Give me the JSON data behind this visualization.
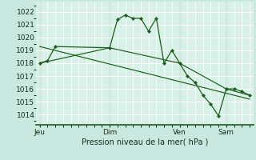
{
  "bg_color": "#c8e8e0",
  "plot_bg": "#d8f0e8",
  "grid_color": "#b8d8d0",
  "line_color": "#1a5e1a",
  "ylim": [
    1013.2,
    1022.8
  ],
  "yticks": [
    1014,
    1015,
    1016,
    1017,
    1018,
    1019,
    1020,
    1021,
    1022
  ],
  "title": "Pression niveau de la mer( hPa )",
  "xtick_labels": [
    "Jeu",
    "Dim",
    "Ven",
    "Sam"
  ],
  "xtick_positions": [
    0,
    9,
    18,
    24
  ],
  "vlines_x": [
    0,
    9,
    18,
    24
  ],
  "xlim": [
    -0.5,
    27.5
  ],
  "series1_x": [
    0,
    1,
    2,
    9,
    10,
    11,
    12,
    13,
    14,
    15,
    16,
    17,
    18,
    19,
    20,
    21,
    22,
    23,
    24,
    25,
    26,
    27
  ],
  "series1_y": [
    1018.0,
    1018.2,
    1019.3,
    1019.2,
    1021.4,
    1021.75,
    1021.5,
    1021.5,
    1020.5,
    1021.5,
    1018.0,
    1019.0,
    1018.0,
    1017.0,
    1016.5,
    1015.5,
    1014.8,
    1013.9,
    1016.0,
    1016.0,
    1015.8,
    1015.5
  ],
  "series2_x": [
    0,
    27
  ],
  "series2_y": [
    1019.3,
    1015.2
  ],
  "series3_x": [
    0,
    9,
    18,
    24,
    27
  ],
  "series3_y": [
    1018.0,
    1019.2,
    1018.0,
    1016.0,
    1015.5
  ]
}
